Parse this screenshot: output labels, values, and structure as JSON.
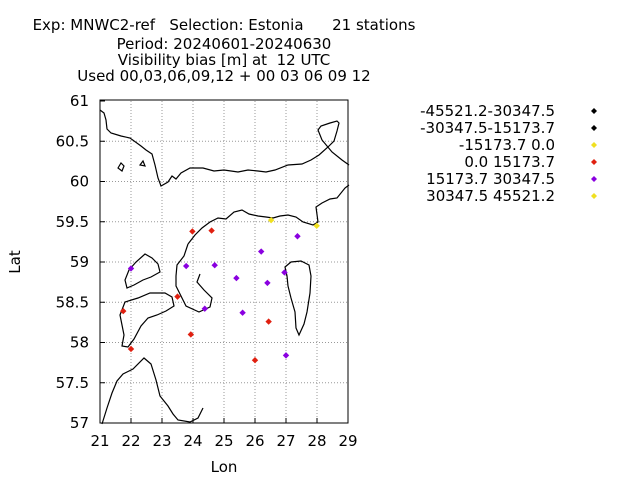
{
  "title": {
    "line1": "Exp: MNWC2-ref   Selection: Estonia      21 stations",
    "line2": "Period: 20240601-20240630",
    "line3": "Visibility bias [m] at  12 UTC",
    "line4": "Used 00,03,06,09,12 + 00 03 06 09 12"
  },
  "chart_data": {
    "type": "scatter",
    "xlabel": "Lon",
    "ylabel": "Lat",
    "xlim": [
      21,
      29
    ],
    "ylim": [
      57,
      61
    ],
    "x_ticks": [
      "21",
      "22",
      "23",
      "24",
      "25",
      "26",
      "27",
      "28",
      "29"
    ],
    "y_ticks": [
      "57",
      "57.5",
      "58",
      "58.5",
      "59",
      "59.5",
      "60",
      "60.5",
      "61"
    ],
    "grid": true,
    "legend_position": "right",
    "legend": [
      {
        "label": "-45521.2-30347.5",
        "color": "#000000"
      },
      {
        "label": "-30347.5-15173.7",
        "color": "#000000"
      },
      {
        "label": "-15173.7 0.0",
        "color": "#f0e020"
      },
      {
        "label": "0.0 15173.7",
        "color": "#e02010"
      },
      {
        "label": "15173.7 30347.5",
        "color": "#8a00e0"
      },
      {
        "label": "30347.5 45521.2",
        "color": "#f0e020"
      }
    ],
    "points": [
      {
        "lon": 22.0,
        "lat": 58.92,
        "class": 4
      },
      {
        "lon": 21.75,
        "lat": 58.39,
        "class": 3
      },
      {
        "lon": 22.0,
        "lat": 57.92,
        "class": 3
      },
      {
        "lon": 23.5,
        "lat": 58.57,
        "class": 3
      },
      {
        "lon": 23.78,
        "lat": 58.95,
        "class": 4
      },
      {
        "lon": 23.93,
        "lat": 58.1,
        "class": 3
      },
      {
        "lon": 23.98,
        "lat": 59.38,
        "class": 3
      },
      {
        "lon": 24.38,
        "lat": 58.42,
        "class": 4
      },
      {
        "lon": 24.6,
        "lat": 59.39,
        "class": 3
      },
      {
        "lon": 24.7,
        "lat": 58.96,
        "class": 4
      },
      {
        "lon": 25.4,
        "lat": 58.8,
        "class": 4
      },
      {
        "lon": 25.6,
        "lat": 58.37,
        "class": 4
      },
      {
        "lon": 26.0,
        "lat": 57.78,
        "class": 3
      },
      {
        "lon": 26.2,
        "lat": 59.13,
        "class": 4
      },
      {
        "lon": 26.4,
        "lat": 58.74,
        "class": 4
      },
      {
        "lon": 26.44,
        "lat": 58.26,
        "class": 3
      },
      {
        "lon": 26.52,
        "lat": 59.52,
        "class": 5
      },
      {
        "lon": 26.95,
        "lat": 58.87,
        "class": 4
      },
      {
        "lon": 27.0,
        "lat": 57.84,
        "class": 4
      },
      {
        "lon": 27.37,
        "lat": 59.32,
        "class": 4
      },
      {
        "lon": 27.99,
        "lat": 59.45,
        "class": 5
      }
    ]
  }
}
